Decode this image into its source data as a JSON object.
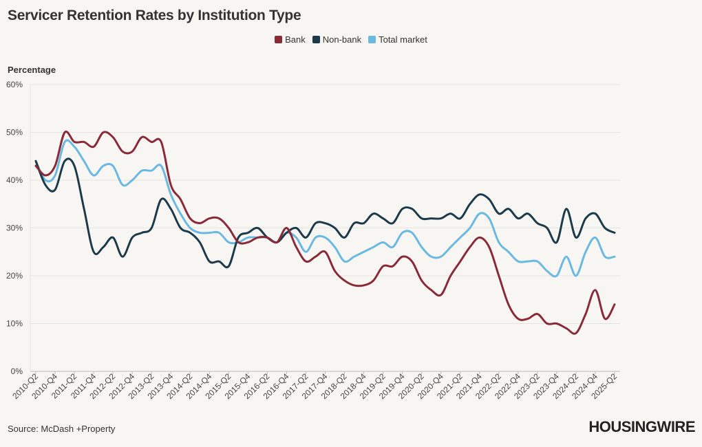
{
  "title": "Servicer Retention Rates by Institution Type",
  "source": "Source: McDash +Property",
  "logo": "HOUSINGWIRE",
  "chart_data": {
    "type": "line",
    "title": "Servicer Retention Rates by Institution Type",
    "ylabel": "Percentage",
    "xlabel": "",
    "ylim": [
      0,
      60
    ],
    "yticks": [
      "0%",
      "10%",
      "20%",
      "30%",
      "40%",
      "50%",
      "60%"
    ],
    "legend_position": "top-center",
    "categories": [
      "2010-Q2",
      "2010-Q3",
      "2010-Q4",
      "2011-Q1",
      "2011-Q2",
      "2011-Q3",
      "2011-Q4",
      "2012-Q1",
      "2012-Q2",
      "2012-Q3",
      "2012-Q4",
      "2013-Q1",
      "2013-Q2",
      "2013-Q3",
      "2013-Q4",
      "2014-Q1",
      "2014-Q2",
      "2014-Q3",
      "2014-Q4",
      "2015-Q1",
      "2015-Q2",
      "2015-Q3",
      "2015-Q4",
      "2016-Q1",
      "2016-Q2",
      "2016-Q3",
      "2016-Q4",
      "2017-Q1",
      "2017-Q2",
      "2017-Q3",
      "2017-Q4",
      "2018-Q1",
      "2018-Q2",
      "2018-Q3",
      "2018-Q4",
      "2019-Q1",
      "2019-Q2",
      "2019-Q3",
      "2019-Q4",
      "2020-Q1",
      "2020-Q2",
      "2020-Q3",
      "2020-Q4",
      "2021-Q1",
      "2021-Q2",
      "2021-Q3",
      "2021-Q4",
      "2022-Q1",
      "2022-Q2",
      "2022-Q3",
      "2022-Q4",
      "2023-Q1",
      "2023-Q2",
      "2023-Q3",
      "2023-Q4",
      "2024-Q1",
      "2024-Q2",
      "2024-Q3",
      "2024-Q4",
      "2025-Q1",
      "2025-Q2"
    ],
    "tick_labels": [
      "2010-Q2",
      "2010-Q4",
      "2011-Q2",
      "2011-Q4",
      "2012-Q2",
      "2012-Q4",
      "2013-Q2",
      "2013-Q4",
      "2014-Q2",
      "2014-Q4",
      "2015-Q2",
      "2015-Q4",
      "2016-Q2",
      "2016-Q4",
      "2017-Q2",
      "2017-Q4",
      "2018-Q2",
      "2018-Q4",
      "2019-Q2",
      "2019-Q4",
      "2020-Q2",
      "2020-Q4",
      "2021-Q2",
      "2021-Q4",
      "2022-Q2",
      "2022-Q4",
      "2023-Q2",
      "2023-Q4",
      "2024-Q2",
      "2024-Q4",
      "2025-Q2"
    ],
    "series": [
      {
        "name": "Bank",
        "color": "#8a2a38",
        "values": [
          43,
          41,
          43,
          50,
          48,
          48,
          47,
          50,
          49,
          46,
          46,
          49,
          48,
          48,
          39,
          36,
          32,
          31,
          32,
          32,
          30,
          27,
          27,
          28,
          28,
          27,
          30,
          26,
          23,
          24,
          25,
          21,
          19,
          18,
          18,
          19,
          22,
          22,
          24,
          23,
          19,
          17,
          16,
          20,
          23,
          26,
          28,
          26,
          20,
          14,
          11,
          11,
          12,
          10,
          10,
          9,
          8,
          12,
          17,
          11,
          14
        ]
      },
      {
        "name": "Non-bank",
        "color": "#1c3a4a",
        "values": [
          44,
          39,
          38,
          44,
          43,
          34,
          25,
          26,
          28,
          24,
          28,
          29,
          30,
          36,
          34,
          30,
          29,
          27,
          23,
          23,
          22,
          28,
          29,
          30,
          28,
          27,
          29,
          30,
          28,
          31,
          31,
          30,
          28,
          31,
          31,
          33,
          32,
          31,
          34,
          34,
          32,
          32,
          32,
          33,
          32,
          35,
          37,
          36,
          33,
          34,
          32,
          33,
          31,
          30,
          27,
          34,
          28,
          32,
          33,
          30,
          29
        ]
      },
      {
        "name": "Total market",
        "color": "#6bb8e0",
        "values": [
          44,
          40,
          41,
          48,
          47,
          44,
          41,
          43,
          43,
          39,
          40,
          42,
          42,
          43,
          37,
          33,
          30,
          29,
          29,
          29,
          27,
          27,
          28,
          28,
          28,
          27,
          29,
          28,
          25,
          28,
          28,
          26,
          23,
          24,
          25,
          26,
          27,
          26,
          29,
          29,
          26,
          24,
          24,
          26,
          28,
          30,
          33,
          32,
          27,
          25,
          23,
          23,
          23,
          21,
          20,
          24,
          20,
          25,
          28,
          24,
          24
        ]
      }
    ]
  }
}
